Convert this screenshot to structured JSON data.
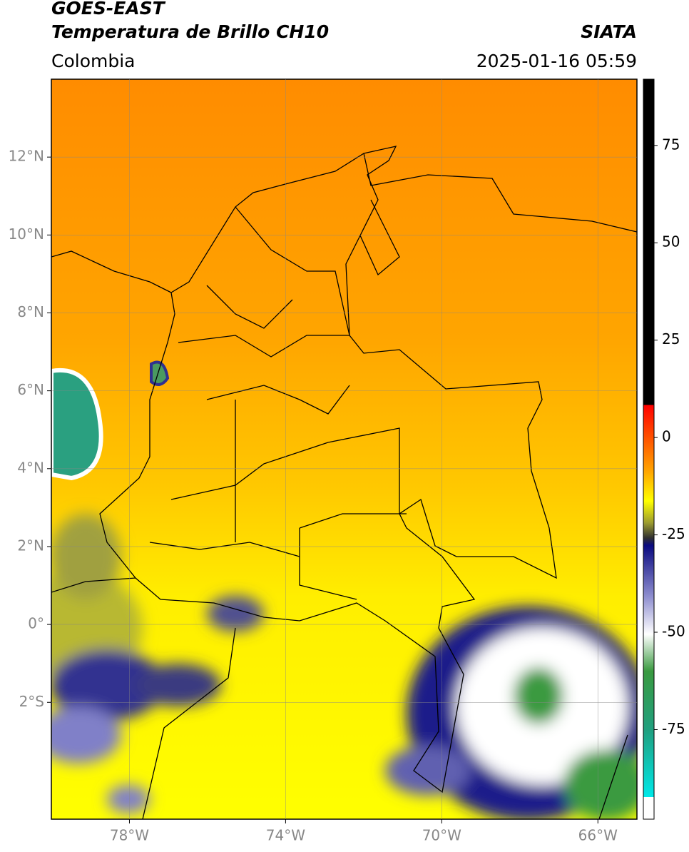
{
  "header": {
    "title": "GOES-EAST",
    "subtitle": "Temperatura de Brillo CH10",
    "brand": "SIATA",
    "region": "Colombia",
    "timestamp": "2025-01-16 05:59"
  },
  "map": {
    "xlim": [
      -80,
      -65
    ],
    "ylim": [
      -5,
      14
    ],
    "grid": true,
    "xticks": [
      {
        "value": -78,
        "label": "78°W"
      },
      {
        "value": -74,
        "label": "74°W"
      },
      {
        "value": -70,
        "label": "70°W"
      },
      {
        "value": -66,
        "label": "66°W"
      }
    ],
    "yticks": [
      {
        "value": 12,
        "label": "12°N"
      },
      {
        "value": 10,
        "label": "10°N"
      },
      {
        "value": 8,
        "label": "8°N"
      },
      {
        "value": 6,
        "label": "6°N"
      },
      {
        "value": 4,
        "label": "4°N"
      },
      {
        "value": 2,
        "label": "2°N"
      },
      {
        "value": 0,
        "label": "0°"
      },
      {
        "value": -2,
        "label": "2°S"
      }
    ]
  },
  "colorbar": {
    "lim": [
      -98,
      92
    ],
    "ticks": [
      75,
      50,
      25,
      0,
      -25,
      -50,
      -75
    ]
  }
}
